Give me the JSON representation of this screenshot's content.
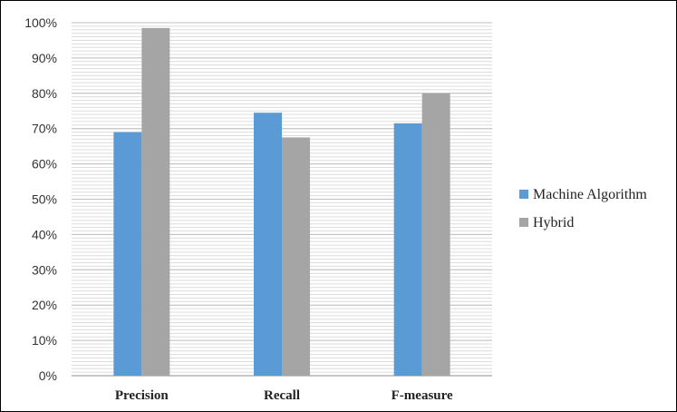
{
  "chart_data": {
    "type": "bar",
    "categories": [
      "Precision",
      "Recall",
      "F-measure"
    ],
    "series": [
      {
        "name": "Machine Algorithm",
        "values": [
          0.69,
          0.745,
          0.715
        ],
        "color": "#5b9bd5"
      },
      {
        "name": "Hybrid",
        "values": [
          0.985,
          0.675,
          0.8
        ],
        "color": "#a5a5a5"
      }
    ],
    "yticks": [
      "0%",
      "10%",
      "20%",
      "30%",
      "40%",
      "50%",
      "60%",
      "70%",
      "80%",
      "90%",
      "100%"
    ],
    "ylim": [
      0,
      1
    ],
    "grid": true,
    "legend_position": "right"
  }
}
